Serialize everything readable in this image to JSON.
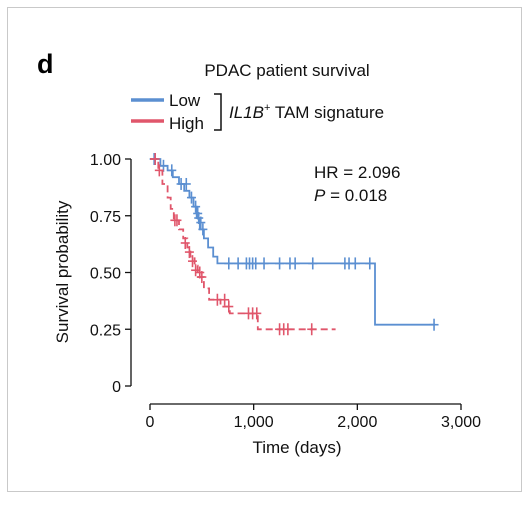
{
  "panel_label": "d",
  "chart_data": {
    "type": "line",
    "subtype": "kaplan-meier",
    "title": "PDAC patient survival",
    "xlabel": "Time (days)",
    "ylabel": "Survival probability",
    "xlim": [
      0,
      3000
    ],
    "ylim": [
      0,
      1.0
    ],
    "xticks": [
      0,
      1000,
      2000,
      3000
    ],
    "xtick_labels": [
      "0",
      "1,000",
      "2,000",
      "3,000"
    ],
    "yticks": [
      0,
      0.25,
      0.5,
      0.75,
      1.0
    ],
    "ytick_labels": [
      "0",
      "0.25",
      "0.50",
      "0.75",
      "1.00"
    ],
    "grid": false,
    "legend": {
      "placement": "top",
      "group_title_gene": "IL1B",
      "group_title_sup": "+",
      "group_title_rest": " TAM signature"
    },
    "annotations": {
      "hr_text": "HR = 2.096",
      "p_label": "P",
      "p_value": " = 0.018"
    },
    "series": [
      {
        "name": "Low",
        "color": "#5b8fd1",
        "dash": false,
        "steps": [
          [
            0,
            1.0
          ],
          [
            100,
            0.97
          ],
          [
            170,
            0.95
          ],
          [
            220,
            0.92
          ],
          [
            280,
            0.89
          ],
          [
            330,
            0.86
          ],
          [
            380,
            0.83
          ],
          [
            420,
            0.79
          ],
          [
            450,
            0.74
          ],
          [
            480,
            0.69
          ],
          [
            520,
            0.65
          ],
          [
            560,
            0.61
          ],
          [
            610,
            0.57
          ],
          [
            650,
            0.54
          ],
          [
            2170,
            0.54
          ],
          [
            2170,
            0.27
          ],
          [
            2750,
            0.27
          ]
        ],
        "censored": [
          [
            40,
            1.0
          ],
          [
            130,
            0.97
          ],
          [
            210,
            0.95
          ],
          [
            300,
            0.89
          ],
          [
            350,
            0.89
          ],
          [
            400,
            0.83
          ],
          [
            440,
            0.79
          ],
          [
            460,
            0.76
          ],
          [
            470,
            0.74
          ],
          [
            490,
            0.72
          ],
          [
            510,
            0.69
          ],
          [
            760,
            0.54
          ],
          [
            850,
            0.54
          ],
          [
            930,
            0.54
          ],
          [
            960,
            0.54
          ],
          [
            990,
            0.54
          ],
          [
            1020,
            0.54
          ],
          [
            1100,
            0.54
          ],
          [
            1250,
            0.54
          ],
          [
            1350,
            0.54
          ],
          [
            1400,
            0.54
          ],
          [
            1570,
            0.54
          ],
          [
            1880,
            0.54
          ],
          [
            1920,
            0.54
          ],
          [
            1980,
            0.54
          ],
          [
            2120,
            0.54
          ],
          [
            2740,
            0.27
          ]
        ]
      },
      {
        "name": "High",
        "color": "#e0566b",
        "dash": true,
        "steps": [
          [
            0,
            1.0
          ],
          [
            80,
            0.95
          ],
          [
            120,
            0.89
          ],
          [
            170,
            0.83
          ],
          [
            200,
            0.78
          ],
          [
            230,
            0.73
          ],
          [
            280,
            0.69
          ],
          [
            320,
            0.65
          ],
          [
            360,
            0.61
          ],
          [
            390,
            0.57
          ],
          [
            430,
            0.53
          ],
          [
            460,
            0.48
          ],
          [
            520,
            0.43
          ],
          [
            570,
            0.38
          ],
          [
            680,
            0.35
          ],
          [
            770,
            0.32
          ],
          [
            1040,
            0.25
          ],
          [
            1790,
            0.25
          ]
        ],
        "censored": [
          [
            50,
            1.0
          ],
          [
            90,
            0.95
          ],
          [
            240,
            0.73
          ],
          [
            260,
            0.73
          ],
          [
            340,
            0.63
          ],
          [
            380,
            0.59
          ],
          [
            410,
            0.55
          ],
          [
            440,
            0.51
          ],
          [
            480,
            0.5
          ],
          [
            500,
            0.48
          ],
          [
            650,
            0.38
          ],
          [
            720,
            0.38
          ],
          [
            760,
            0.35
          ],
          [
            950,
            0.32
          ],
          [
            990,
            0.32
          ],
          [
            1030,
            0.32
          ],
          [
            1250,
            0.25
          ],
          [
            1290,
            0.25
          ],
          [
            1330,
            0.25
          ],
          [
            1560,
            0.25
          ]
        ]
      }
    ]
  }
}
